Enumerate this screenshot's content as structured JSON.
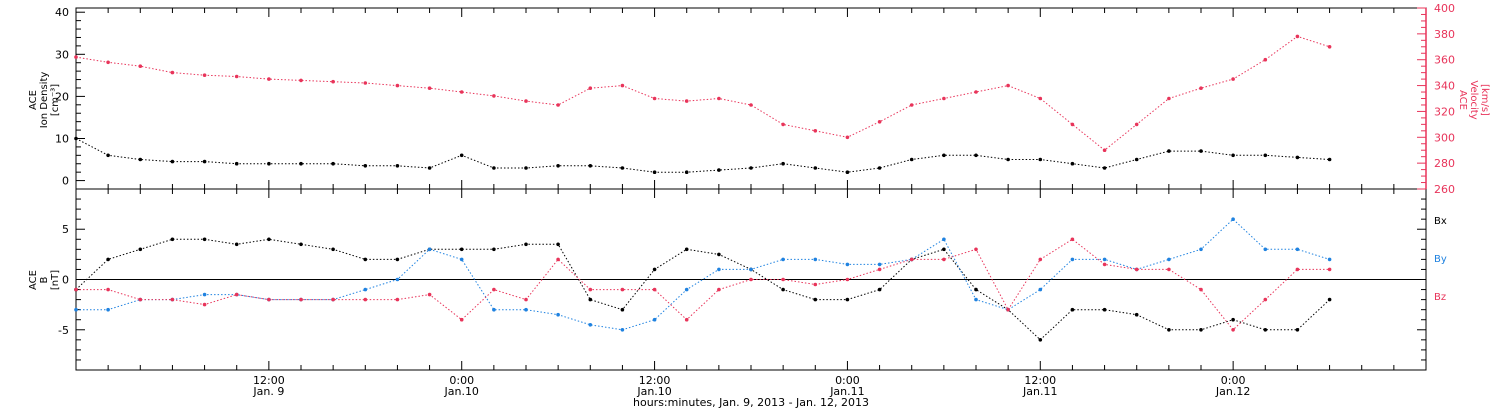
{
  "colors": {
    "density": "#000000",
    "velocity": "#e8345a",
    "bx": "#000000",
    "by": "#1f82e0",
    "bz": "#e8345a"
  },
  "xlabel": "hours:minutes, Jan.  9, 2013 - Jan. 12, 2013",
  "x_ticks": [
    {
      "hour": 12,
      "time": "12:00",
      "date": "Jan. 9"
    },
    {
      "hour": 24,
      "time": "0:00",
      "date": "Jan.10"
    },
    {
      "hour": 36,
      "time": "12:00",
      "date": "Jan.10"
    },
    {
      "hour": 48,
      "time": "0:00",
      "date": "Jan.11"
    },
    {
      "hour": 60,
      "time": "12:00",
      "date": "Jan.11"
    },
    {
      "hour": 72,
      "time": "0:00",
      "date": "Jan.12"
    }
  ],
  "chart_data": [
    {
      "type": "scatter",
      "panel": "top",
      "ylabel_left": [
        "ACE",
        "Ion Density",
        "[cm⁻³]"
      ],
      "ylabel_right": [
        "ACE",
        "Velocity",
        "[km/s]"
      ],
      "xlim_hours": [
        0,
        84
      ],
      "ylim_left": [
        -2,
        41
      ],
      "ylim_right": [
        260,
        400
      ],
      "yticks_left": [
        0,
        10,
        20,
        30,
        40
      ],
      "yticks_right": [
        260,
        280,
        300,
        320,
        340,
        360,
        380,
        400
      ],
      "series": [
        {
          "key": "density",
          "axis": "left",
          "hours": [
            0,
            2,
            4,
            6,
            8,
            10,
            12,
            14,
            16,
            18,
            20,
            22,
            24,
            26,
            28,
            30,
            32,
            34,
            36,
            38,
            40,
            42,
            44,
            46,
            48,
            50,
            52,
            54,
            56,
            58,
            60,
            62,
            64,
            66,
            68,
            70,
            72,
            74,
            76,
            78
          ],
          "values": [
            10,
            6,
            5,
            4.5,
            4.5,
            4,
            4,
            4,
            4,
            3.5,
            3.5,
            3,
            6,
            3,
            3,
            3.5,
            3.5,
            3,
            2,
            2,
            2.5,
            3,
            4,
            3,
            2,
            3,
            5,
            6,
            6,
            5,
            5,
            4,
            3,
            5,
            7,
            7,
            6,
            6,
            5.5,
            5
          ]
        },
        {
          "key": "velocity",
          "axis": "right",
          "hours": [
            0,
            2,
            4,
            6,
            8,
            10,
            12,
            14,
            16,
            18,
            20,
            22,
            24,
            26,
            28,
            30,
            32,
            34,
            36,
            38,
            40,
            42,
            44,
            46,
            48,
            50,
            52,
            54,
            56,
            58,
            60,
            62,
            64,
            66,
            68,
            70,
            72,
            74,
            76,
            78
          ],
          "values": [
            362,
            358,
            355,
            350,
            348,
            347,
            345,
            344,
            343,
            342,
            340,
            338,
            335,
            332,
            328,
            325,
            338,
            340,
            330,
            328,
            330,
            325,
            310,
            305,
            300,
            312,
            325,
            330,
            335,
            340,
            330,
            310,
            290,
            310,
            330,
            338,
            345,
            360,
            378,
            370
          ]
        }
      ]
    },
    {
      "type": "scatter",
      "panel": "bottom",
      "ylabel_left": [
        "ACE",
        "B",
        "[nT]"
      ],
      "xlim_hours": [
        0,
        84
      ],
      "ylim": [
        -9,
        9
      ],
      "yticks": [
        -5,
        0,
        5
      ],
      "legend": [
        "Bx",
        "By",
        "Bz"
      ],
      "legend_position": "right",
      "series": [
        {
          "key": "bx",
          "name": "Bx",
          "hours": [
            0,
            2,
            4,
            6,
            8,
            10,
            12,
            14,
            16,
            18,
            20,
            22,
            24,
            26,
            28,
            30,
            32,
            34,
            36,
            38,
            40,
            42,
            44,
            46,
            48,
            50,
            52,
            54,
            56,
            58,
            60,
            62,
            64,
            66,
            68,
            70,
            72,
            74,
            76,
            78
          ],
          "values": [
            -1,
            2,
            3,
            4,
            4,
            3.5,
            4,
            3.5,
            3,
            2,
            2,
            3,
            3,
            3,
            3.5,
            3.5,
            -2,
            -3,
            1,
            3,
            2.5,
            1,
            -1,
            -2,
            -2,
            -1,
            2,
            3,
            -1,
            -3,
            -6,
            -3,
            -3,
            -3.5,
            -5,
            -5,
            -4,
            -5,
            -5,
            -2
          ]
        },
        {
          "key": "by",
          "name": "By",
          "hours": [
            0,
            2,
            4,
            6,
            8,
            10,
            12,
            14,
            16,
            18,
            20,
            22,
            24,
            26,
            28,
            30,
            32,
            34,
            36,
            38,
            40,
            42,
            44,
            46,
            48,
            50,
            52,
            54,
            56,
            58,
            60,
            62,
            64,
            66,
            68,
            70,
            72,
            74,
            76,
            78
          ],
          "values": [
            -3,
            -3,
            -2,
            -2,
            -1.5,
            -1.5,
            -2,
            -2,
            -2,
            -1,
            0,
            3,
            2,
            -3,
            -3,
            -3.5,
            -4.5,
            -5,
            -4,
            -1,
            1,
            1,
            2,
            2,
            1.5,
            1.5,
            2,
            4,
            -2,
            -3,
            -1,
            2,
            2,
            1,
            2,
            3,
            6,
            3,
            3,
            2
          ]
        },
        {
          "key": "bz",
          "name": "Bz",
          "hours": [
            0,
            2,
            4,
            6,
            8,
            10,
            12,
            14,
            16,
            18,
            20,
            22,
            24,
            26,
            28,
            30,
            32,
            34,
            36,
            38,
            40,
            42,
            44,
            46,
            48,
            50,
            52,
            54,
            56,
            58,
            60,
            62,
            64,
            66,
            68,
            70,
            72,
            74,
            76,
            78
          ],
          "values": [
            -1,
            -1,
            -2,
            -2,
            -2.5,
            -1.5,
            -2,
            -2,
            -2,
            -2,
            -2,
            -1.5,
            -4,
            -1,
            -2,
            2,
            -1,
            -1,
            -1,
            -4,
            -1,
            0,
            0,
            -0.5,
            0,
            1,
            2,
            2,
            3,
            -3,
            2,
            4,
            1.5,
            1,
            1,
            -1,
            -5,
            -2,
            1,
            1
          ]
        }
      ]
    }
  ]
}
